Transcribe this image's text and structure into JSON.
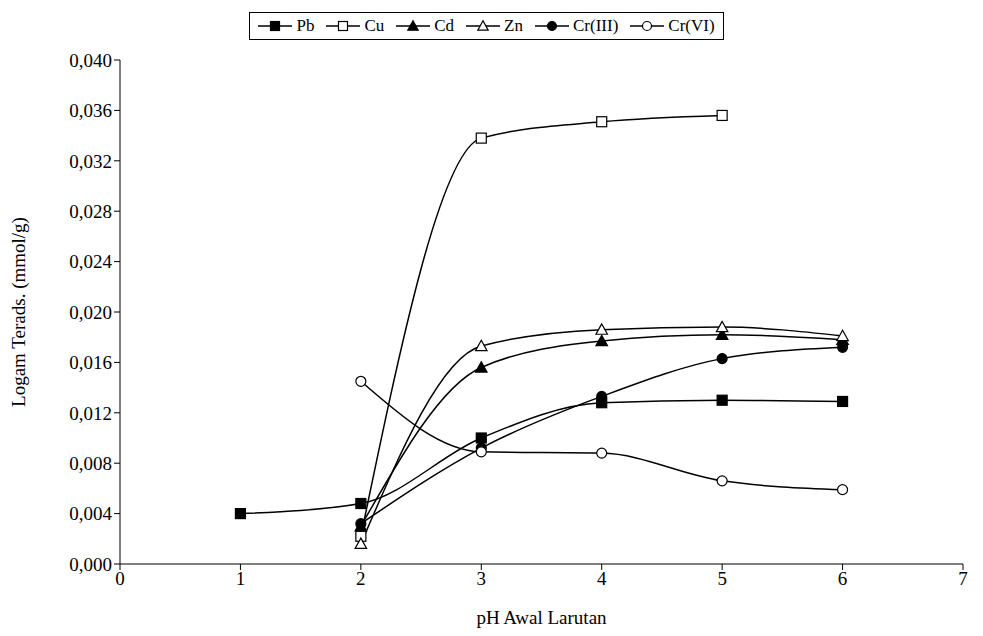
{
  "chart_data": {
    "type": "line",
    "x_label": "pH Awal Larutan",
    "y_label": "Logam Terads. (mmol/g)",
    "xlim": [
      0,
      7
    ],
    "xticks": [
      0,
      1,
      2,
      3,
      4,
      5,
      6,
      7
    ],
    "ylim": [
      0,
      0.04
    ],
    "yticks": [
      {
        "value": 0,
        "label": "0,000"
      },
      {
        "value": 0.004,
        "label": "0,004"
      },
      {
        "value": 0.008,
        "label": "0,008"
      },
      {
        "value": 0.012,
        "label": "0,012"
      },
      {
        "value": 0.016,
        "label": "0,016"
      },
      {
        "value": 0.02,
        "label": "0,020"
      },
      {
        "value": 0.024,
        "label": "0,024"
      },
      {
        "value": 0.028,
        "label": "0,028"
      },
      {
        "value": 0.032,
        "label": "0,032"
      },
      {
        "value": 0.036,
        "label": "0,036"
      },
      {
        "value": 0.04,
        "label": "0,040"
      }
    ],
    "grid": false,
    "legend": "top",
    "series": [
      {
        "name": "Pb",
        "color": "#000000",
        "marker": "filled_square",
        "line_style": "solid",
        "x": [
          1,
          2,
          3,
          4,
          5,
          6
        ],
        "values": [
          0.004,
          0.0048,
          0.01,
          0.0128,
          0.013,
          0.0129
        ]
      },
      {
        "name": "Cu",
        "color": "#000000",
        "marker": "open_square",
        "line_style": "solid",
        "x": [
          2,
          3,
          4,
          5
        ],
        "values": [
          0.0022,
          0.0338,
          0.0351,
          0.0356
        ]
      },
      {
        "name": "Cd",
        "color": "#000000",
        "marker": "filled_triangle",
        "line_style": "solid",
        "x": [
          2,
          3,
          4,
          5,
          6
        ],
        "values": [
          0.003,
          0.0156,
          0.0177,
          0.0182,
          0.0178
        ]
      },
      {
        "name": "Zn",
        "color": "#000000",
        "marker": "open_triangle",
        "line_style": "solid",
        "x": [
          2,
          3,
          4,
          5,
          6
        ],
        "values": [
          0.0016,
          0.0173,
          0.0186,
          0.0188,
          0.0181
        ]
      },
      {
        "name": "Cr(III)",
        "color": "#000000",
        "marker": "filled_circle",
        "line_style": "solid",
        "x": [
          2,
          3,
          4,
          5,
          6
        ],
        "values": [
          0.0032,
          0.0092,
          0.0133,
          0.0163,
          0.0172
        ]
      },
      {
        "name": "Cr(VI)",
        "color": "#000000",
        "marker": "open_circle",
        "line_style": "solid",
        "x": [
          2,
          3,
          4,
          5,
          6
        ],
        "values": [
          0.0145,
          0.0089,
          0.0088,
          0.0066,
          0.0059
        ]
      }
    ]
  }
}
